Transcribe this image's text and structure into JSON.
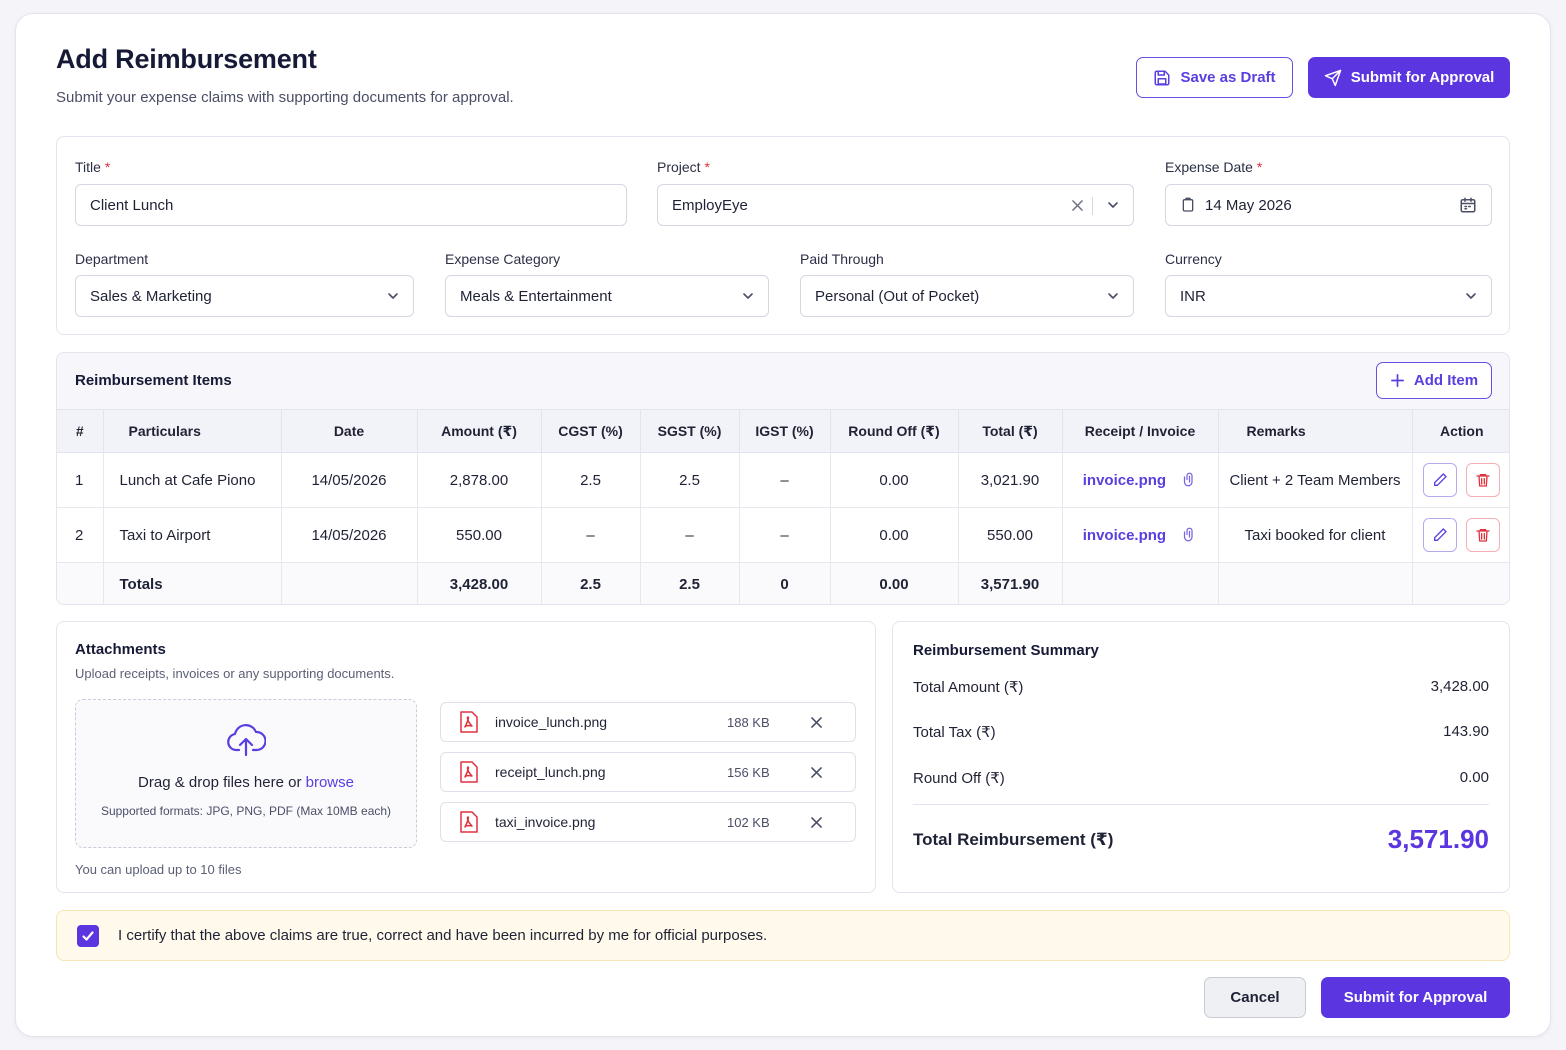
{
  "header": {
    "title": "Add Reimbursement",
    "subtitle": "Submit your expense claims with supporting documents for approval.",
    "save_draft_label": "Save as Draft",
    "submit_label": "Submit for Approval"
  },
  "form": {
    "title_label": "Title",
    "title_value": "Client Lunch",
    "project_label": "Project",
    "project_value": "EmployEye",
    "date_label": "Expense Date",
    "date_value": "14 May 2026",
    "department_label": "Department",
    "department_value": "Sales & Marketing",
    "category_label": "Expense Category",
    "category_value": "Meals & Entertainment",
    "paid_label": "Paid Through",
    "paid_value": "Personal (Out of Pocket)",
    "currency_label": "Currency",
    "currency_value": "INR",
    "required_mark": "*"
  },
  "items": {
    "heading": "Reimbursement Items",
    "add_label": "Add Item",
    "columns": [
      "#",
      "Particulars",
      "Date",
      "Amount (₹)",
      "CGST (%)",
      "SGST (%)",
      "IGST (%)",
      "Round Off (₹)",
      "Total (₹)",
      "Receipt / Invoice",
      "Remarks",
      "Action"
    ],
    "rows": [
      {
        "no": "1",
        "particulars": "Lunch at Cafe Piono",
        "date": "14/05/2026",
        "amount": "2,878.00",
        "cgst": "2.5",
        "sgst": "2.5",
        "igst": "–",
        "round_off": "0.00",
        "total": "3,021.90",
        "receipt": "invoice.png",
        "remarks": "Client + 2 Team Members"
      },
      {
        "no": "2",
        "particulars": "Taxi to Airport",
        "date": "14/05/2026",
        "amount": "550.00",
        "cgst": "–",
        "sgst": "–",
        "igst": "–",
        "round_off": "0.00",
        "total": "550.00",
        "receipt": "invoice.png",
        "remarks": "Taxi booked for client"
      }
    ],
    "totals": {
      "label": "Totals",
      "amount": "3,428.00",
      "cgst": "2.5",
      "sgst": "2.5",
      "igst": "0",
      "round_off": "0.00",
      "total": "3,571.90"
    }
  },
  "attachments": {
    "heading": "Attachments",
    "description": "Upload receipts, invoices or any supporting documents.",
    "drop_text": "Drag & drop files here or ",
    "browse_label": "browse",
    "formats": "Supported formats: JPG, PNG, PDF (Max 10MB each)",
    "limit_note": "You can upload up to 10 files",
    "files": [
      {
        "name": "invoice_lunch.png",
        "size": "188 KB"
      },
      {
        "name": "receipt_lunch.png",
        "size": "156 KB"
      },
      {
        "name": "taxi_invoice.png",
        "size": "102 KB"
      }
    ]
  },
  "summary": {
    "heading": "Reimbursement Summary",
    "total_amount_label": "Total Amount (₹)",
    "total_amount": "3,428.00",
    "total_tax_label": "Total Tax (₹)",
    "total_tax": "143.90",
    "round_off_label": "Round Off (₹)",
    "round_off": "0.00",
    "total_reimbursement_label": "Total Reimbursement (₹)",
    "total_reimbursement": "3,571.90"
  },
  "certify": {
    "text": "I certify that the above claims are true, correct and have been incurred by me for official purposes.",
    "checked": true
  },
  "footer": {
    "cancel_label": "Cancel",
    "submit_label": "Submit for Approval"
  },
  "colors": {
    "accent": "#5b35e0",
    "danger": "#e0313f",
    "notice_bg": "#fffaec"
  }
}
